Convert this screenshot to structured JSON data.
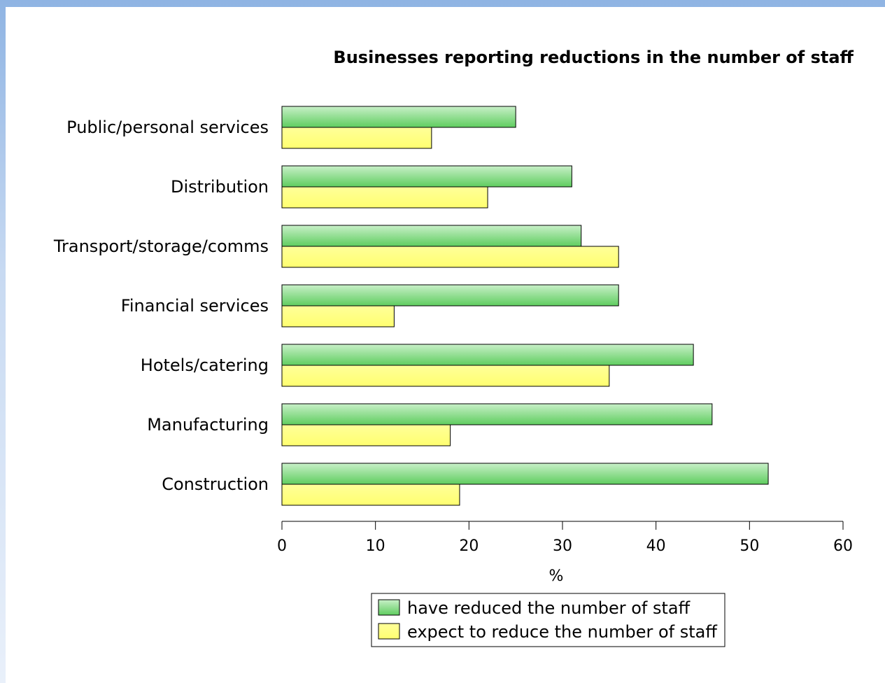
{
  "chart_data": {
    "type": "bar",
    "orientation": "horizontal",
    "title": "Businesses reporting reductions in the number of staff",
    "xlabel": "%",
    "ylabel": "",
    "xlim": [
      0,
      60
    ],
    "xticks": [
      0,
      10,
      20,
      30,
      40,
      50,
      60
    ],
    "categories": [
      "Public/personal services",
      "Distribution",
      "Transport/storage/comms",
      "Financial services",
      "Hotels/catering",
      "Manufacturing",
      "Construction"
    ],
    "series": [
      {
        "name": "have reduced the number of staff",
        "color": "#7ed67e",
        "values": [
          25,
          31,
          32,
          36,
          44,
          46,
          52
        ]
      },
      {
        "name": "expect to reduce the number of staff",
        "color": "#ffff88",
        "values": [
          16,
          22,
          36,
          12,
          35,
          18,
          19
        ]
      }
    ],
    "grid": false,
    "legend_position": "bottom"
  }
}
